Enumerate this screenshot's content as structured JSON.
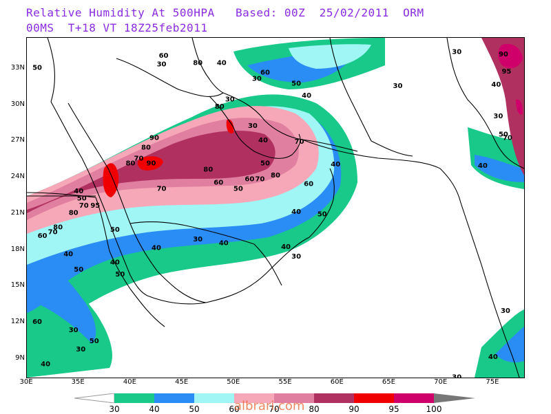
{
  "title": {
    "line1": "Relative Humidity At 500HPA   Based: 00Z  25/02/2011  ORM",
    "line2": "00MS  T+18 VT 18Z25feb2011"
  },
  "lat_labels": [
    "33N",
    "30N",
    "27N",
    "24N",
    "21N",
    "18N",
    "15N",
    "12N",
    "9N"
  ],
  "lon_labels": [
    "30E",
    "35E",
    "40E",
    "45E",
    "50E",
    "55E",
    "60E",
    "65E",
    "70E",
    "75E"
  ],
  "legend": {
    "levels": [
      "30",
      "40",
      "50",
      "60",
      "70",
      "80",
      "90",
      "95",
      "100"
    ],
    "colors": [
      "#18c98a",
      "#2a8cf5",
      "#a0f5f5",
      "#f7a8b8",
      "#e07fa0",
      "#b03060",
      "#f00000",
      "#d0006a"
    ]
  },
  "watermark": "albrari.com",
  "contour_labels": [
    {
      "t": "60",
      "lon": 43.2,
      "lat": 33.9
    },
    {
      "t": "80",
      "lon": 46.5,
      "lat": 33.3
    },
    {
      "t": "40",
      "lon": 48.8,
      "lat": 33.3
    },
    {
      "t": "30",
      "lon": 43.0,
      "lat": 33.2
    },
    {
      "t": "50",
      "lon": 31.0,
      "lat": 32.9
    },
    {
      "t": "60",
      "lon": 53.0,
      "lat": 32.5
    },
    {
      "t": "30",
      "lon": 52.2,
      "lat": 32.0
    },
    {
      "t": "50",
      "lon": 56.0,
      "lat": 31.6
    },
    {
      "t": "40",
      "lon": 57.0,
      "lat": 30.6
    },
    {
      "t": "30",
      "lon": 65.8,
      "lat": 31.4
    },
    {
      "t": "30",
      "lon": 71.5,
      "lat": 34.2
    },
    {
      "t": "90",
      "lon": 76.0,
      "lat": 34.0
    },
    {
      "t": "95",
      "lon": 76.3,
      "lat": 32.6
    },
    {
      "t": "40",
      "lon": 75.3,
      "lat": 31.5
    },
    {
      "t": "30",
      "lon": 75.5,
      "lat": 28.9
    },
    {
      "t": "50",
      "lon": 76.0,
      "lat": 27.4
    },
    {
      "t": "70",
      "lon": 76.4,
      "lat": 27.1
    },
    {
      "t": "40",
      "lon": 74.0,
      "lat": 24.8
    },
    {
      "t": "30",
      "lon": 49.6,
      "lat": 30.3
    },
    {
      "t": "80",
      "lon": 48.6,
      "lat": 29.7
    },
    {
      "t": "30",
      "lon": 51.8,
      "lat": 28.1
    },
    {
      "t": "40",
      "lon": 52.8,
      "lat": 26.9
    },
    {
      "t": "70",
      "lon": 56.3,
      "lat": 26.8
    },
    {
      "t": "40",
      "lon": 59.8,
      "lat": 24.9
    },
    {
      "t": "50",
      "lon": 53.0,
      "lat": 25.0
    },
    {
      "t": "80",
      "lon": 54.0,
      "lat": 24.0
    },
    {
      "t": "60",
      "lon": 57.2,
      "lat": 23.3
    },
    {
      "t": "50",
      "lon": 50.4,
      "lat": 22.9
    },
    {
      "t": "60",
      "lon": 51.5,
      "lat": 23.7
    },
    {
      "t": "70",
      "lon": 52.5,
      "lat": 23.7
    },
    {
      "t": "80",
      "lon": 47.5,
      "lat": 24.5
    },
    {
      "t": "60",
      "lon": 48.5,
      "lat": 23.4
    },
    {
      "t": "70",
      "lon": 43.0,
      "lat": 22.9
    },
    {
      "t": "40",
      "lon": 56.0,
      "lat": 21.0
    },
    {
      "t": "50",
      "lon": 58.5,
      "lat": 20.8
    },
    {
      "t": "80",
      "lon": 40.0,
      "lat": 25.0
    },
    {
      "t": "70",
      "lon": 40.8,
      "lat": 25.4
    },
    {
      "t": "90",
      "lon": 42.0,
      "lat": 25.0
    },
    {
      "t": "90",
      "lon": 42.3,
      "lat": 27.1
    },
    {
      "t": "80",
      "lon": 41.5,
      "lat": 26.3
    },
    {
      "t": "40",
      "lon": 35.0,
      "lat": 22.7
    },
    {
      "t": "50",
      "lon": 35.3,
      "lat": 22.1
    },
    {
      "t": "70",
      "lon": 35.5,
      "lat": 21.5
    },
    {
      "t": "80",
      "lon": 34.5,
      "lat": 20.9
    },
    {
      "t": "95",
      "lon": 36.6,
      "lat": 21.5
    },
    {
      "t": "80",
      "lon": 33.0,
      "lat": 19.7
    },
    {
      "t": "70",
      "lon": 32.5,
      "lat": 19.3
    },
    {
      "t": "60",
      "lon": 31.5,
      "lat": 19.0
    },
    {
      "t": "50",
      "lon": 38.5,
      "lat": 19.5
    },
    {
      "t": "40",
      "lon": 34.0,
      "lat": 17.5
    },
    {
      "t": "40",
      "lon": 38.5,
      "lat": 16.8
    },
    {
      "t": "50",
      "lon": 35.0,
      "lat": 16.2
    },
    {
      "t": "50",
      "lon": 39.0,
      "lat": 15.8
    },
    {
      "t": "40",
      "lon": 42.5,
      "lat": 18.0
    },
    {
      "t": "30",
      "lon": 46.5,
      "lat": 18.7
    },
    {
      "t": "40",
      "lon": 49.0,
      "lat": 18.4
    },
    {
      "t": "40",
      "lon": 55.0,
      "lat": 18.1
    },
    {
      "t": "30",
      "lon": 56.0,
      "lat": 17.3
    },
    {
      "t": "60",
      "lon": 31.0,
      "lat": 11.9
    },
    {
      "t": "30",
      "lon": 34.5,
      "lat": 11.2
    },
    {
      "t": "50",
      "lon": 36.5,
      "lat": 10.3
    },
    {
      "t": "30",
      "lon": 35.2,
      "lat": 9.6
    },
    {
      "t": "40",
      "lon": 31.8,
      "lat": 8.4
    },
    {
      "t": "30",
      "lon": 76.2,
      "lat": 12.8
    },
    {
      "t": "40",
      "lon": 75.0,
      "lat": 9.0
    },
    {
      "t": "30",
      "lon": 71.5,
      "lat": 7.3
    }
  ]
}
